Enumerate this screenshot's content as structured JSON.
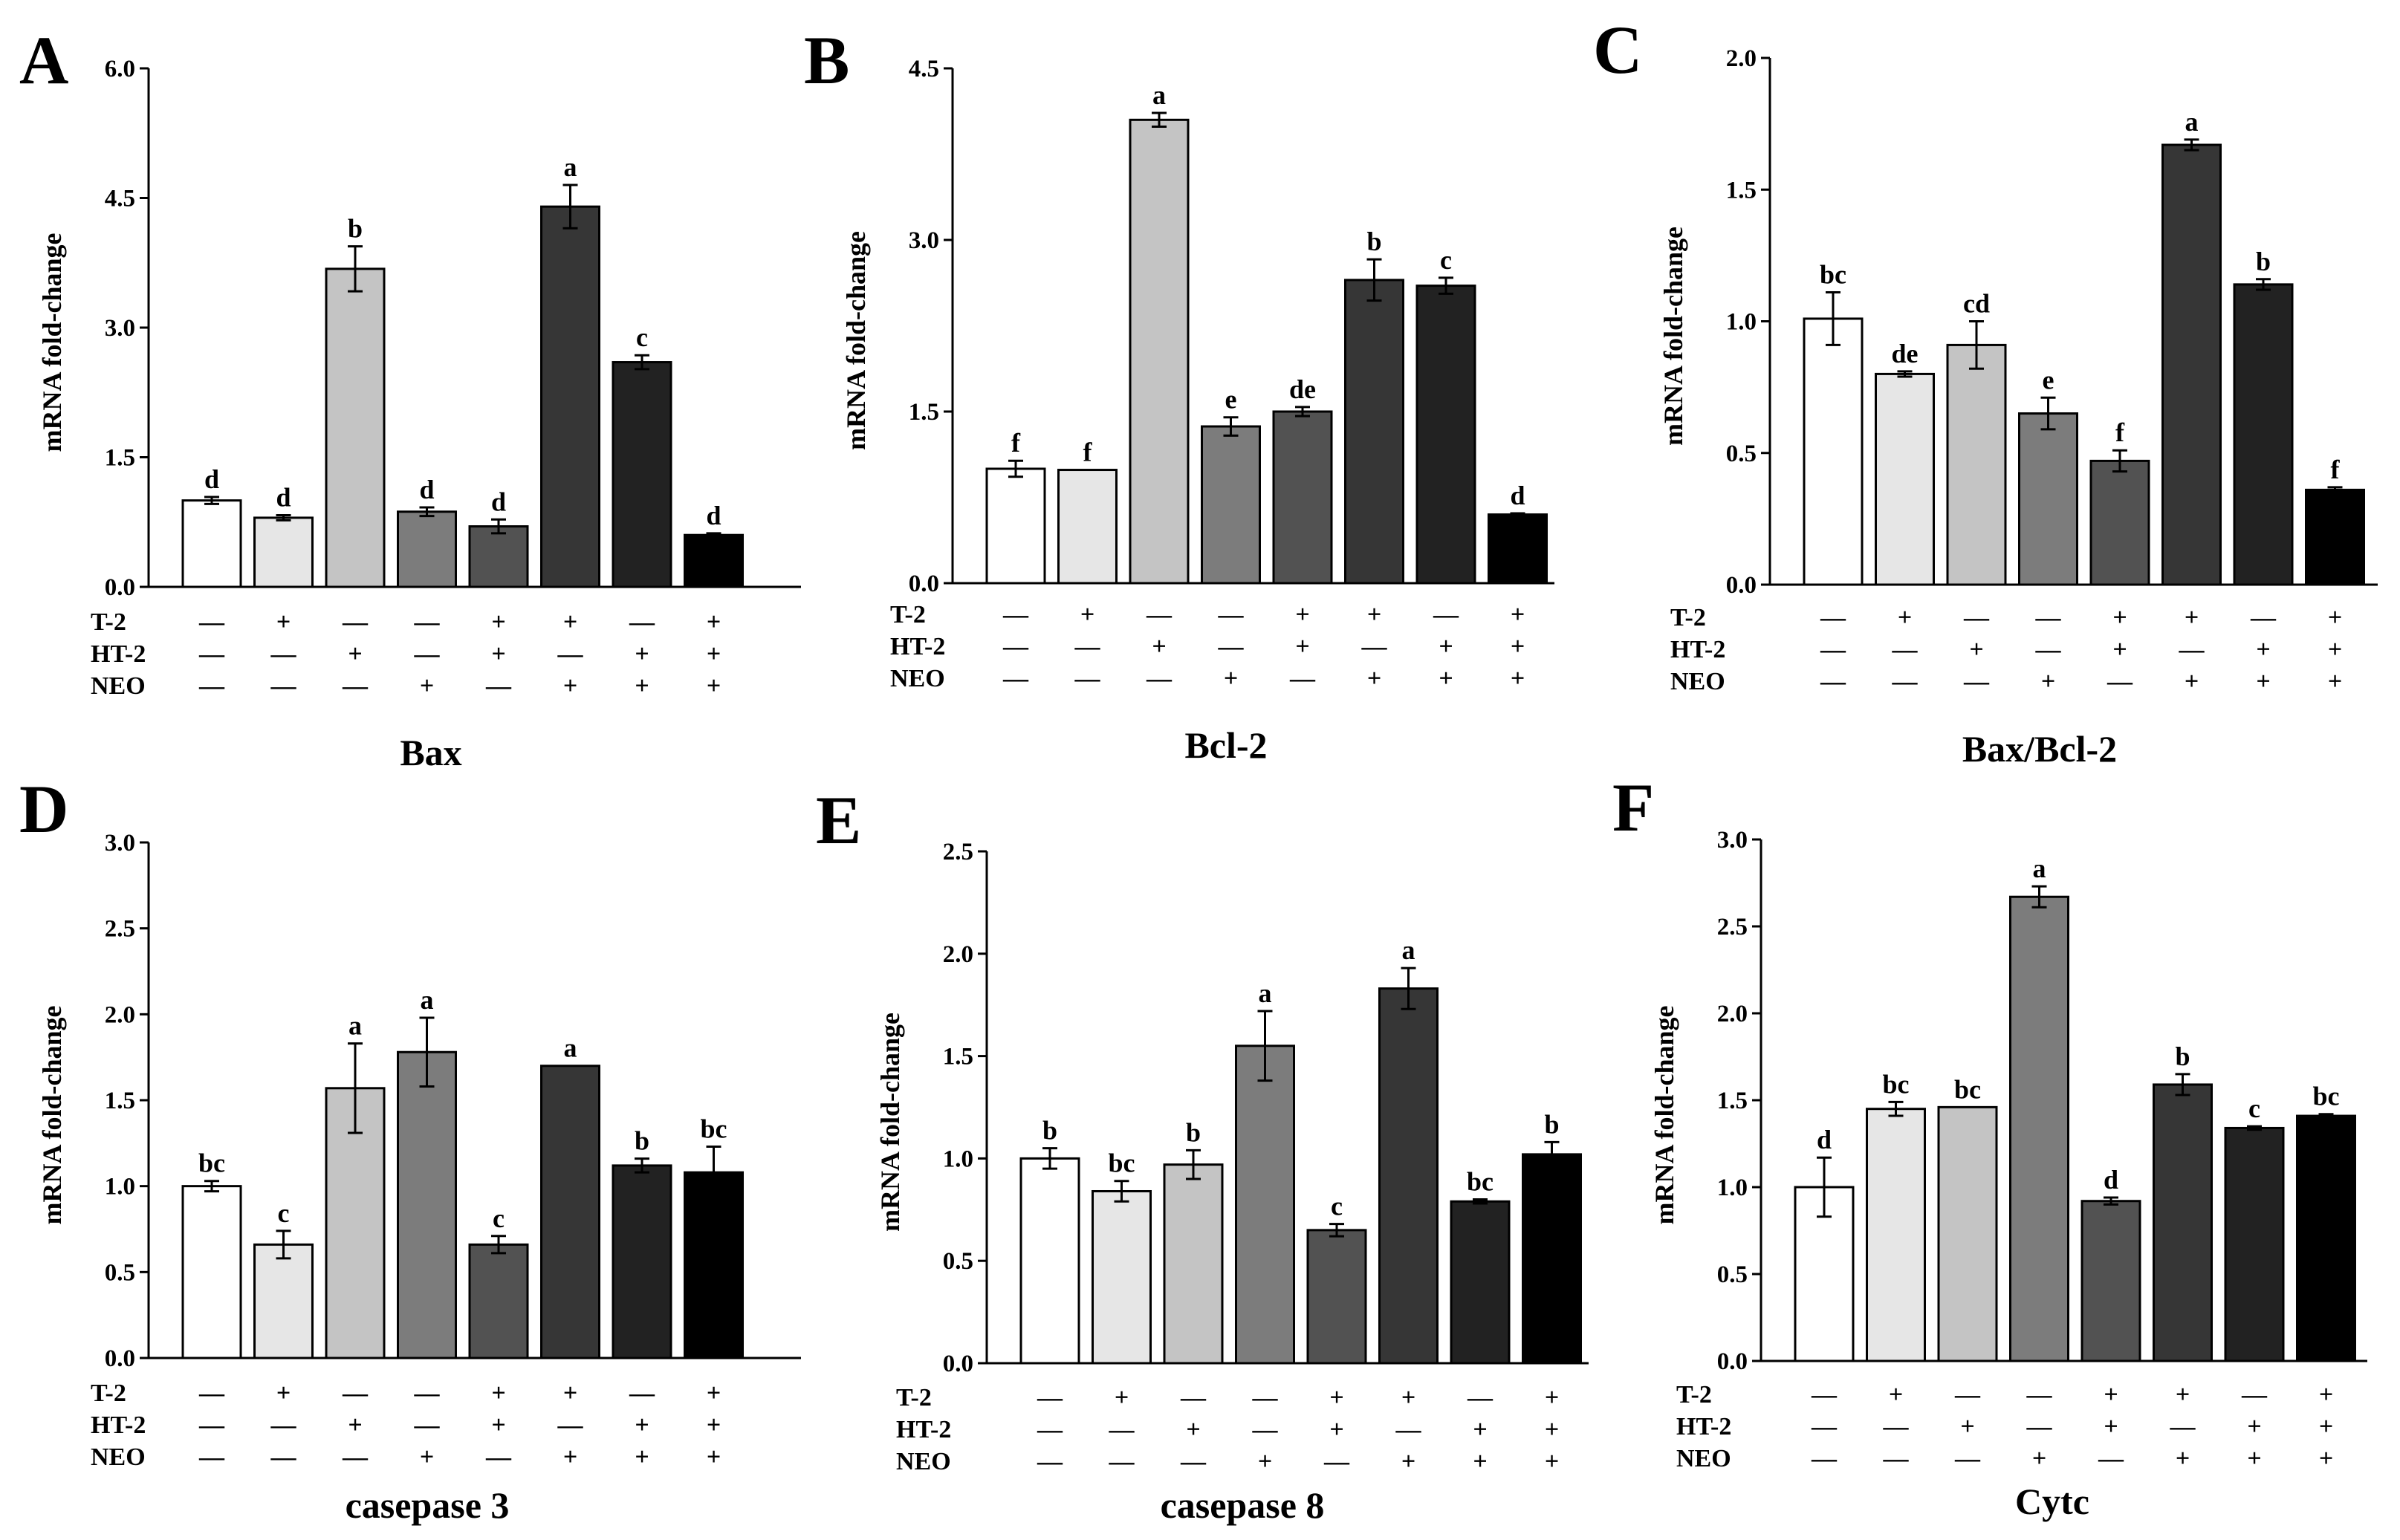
{
  "figure": {
    "rows": [
      "T-2",
      "HT-2",
      "NEO"
    ],
    "plus": "+",
    "minus": "—",
    "treatments": [
      {
        "T-2": "—",
        "HT-2": "—",
        "NEO": "—"
      },
      {
        "T-2": "+",
        "HT-2": "—",
        "NEO": "—"
      },
      {
        "T-2": "—",
        "HT-2": "+",
        "NEO": "—"
      },
      {
        "T-2": "—",
        "HT-2": "—",
        "NEO": "+"
      },
      {
        "T-2": "+",
        "HT-2": "+",
        "NEO": "—"
      },
      {
        "T-2": "+",
        "HT-2": "—",
        "NEO": "+"
      },
      {
        "T-2": "—",
        "HT-2": "+",
        "NEO": "+"
      },
      {
        "T-2": "+",
        "HT-2": "+",
        "NEO": "+"
      }
    ],
    "bar_colors": [
      "#ffffff",
      "#e6e6e6",
      "#c4c4c4",
      "#7c7c7c",
      "#525252",
      "#363636",
      "#222222",
      "#000000"
    ]
  },
  "chart_data": [
    {
      "type": "bar",
      "panel": "A",
      "title": "Bax",
      "ylabel": "mRNA fold-change",
      "ylim": [
        0,
        6.0
      ],
      "yticks": [
        "0.0",
        "1.5",
        "3.0",
        "4.5",
        "6.0"
      ],
      "values": [
        1.0,
        0.8,
        3.68,
        0.87,
        0.7,
        4.4,
        2.6,
        0.6
      ],
      "errors": [
        0.04,
        0.03,
        0.26,
        0.05,
        0.08,
        0.25,
        0.08,
        0.02
      ],
      "labels": [
        "d",
        "d",
        "b",
        "d",
        "d",
        "a",
        "c",
        "d"
      ]
    },
    {
      "type": "bar",
      "panel": "B",
      "title": "Bcl-2",
      "ylabel": "mRNA fold-change",
      "ylim": [
        0,
        4.5
      ],
      "yticks": [
        "0.0",
        "1.5",
        "3.0",
        "4.5"
      ],
      "values": [
        1.0,
        0.99,
        4.05,
        1.37,
        1.5,
        2.65,
        2.6,
        0.6
      ],
      "errors": [
        0.07,
        0.0,
        0.06,
        0.08,
        0.04,
        0.18,
        0.07,
        0.01
      ],
      "labels": [
        "f",
        "f",
        "a",
        "e",
        "de",
        "b",
        "c",
        "d"
      ]
    },
    {
      "type": "bar",
      "panel": "C",
      "title": "Bax/Bcl-2",
      "ylabel": "mRNA fold-change",
      "ylim": [
        0,
        2.0
      ],
      "yticks": [
        "0.0",
        "0.5",
        "1.0",
        "1.5",
        "2.0"
      ],
      "values": [
        1.01,
        0.8,
        0.91,
        0.65,
        0.47,
        1.67,
        1.14,
        0.36
      ],
      "errors": [
        0.1,
        0.01,
        0.09,
        0.06,
        0.04,
        0.02,
        0.02,
        0.01
      ],
      "labels": [
        "bc",
        "de",
        "cd",
        "e",
        "f",
        "a",
        "b",
        "f"
      ]
    },
    {
      "type": "bar",
      "panel": "D",
      "title": "casepase 3",
      "ylabel": "mRNA fold-change",
      "ylim": [
        0,
        3.0
      ],
      "yticks": [
        "0.0",
        "0.5",
        "1.0",
        "1.5",
        "2.0",
        "2.5",
        "3.0"
      ],
      "values": [
        1.0,
        0.66,
        1.57,
        1.78,
        0.66,
        1.7,
        1.12,
        1.08
      ],
      "errors": [
        0.03,
        0.08,
        0.26,
        0.2,
        0.05,
        0.0,
        0.04,
        0.15
      ],
      "labels": [
        "bc",
        "c",
        "a",
        "a",
        "c",
        "a",
        "b",
        "bc"
      ]
    },
    {
      "type": "bar",
      "panel": "E",
      "title": "casepase 8",
      "ylabel": "mRNA fold-change",
      "ylim": [
        0,
        2.5
      ],
      "yticks": [
        "0.0",
        "0.5",
        "1.0",
        "1.5",
        "2.0",
        "2.5"
      ],
      "values": [
        1.0,
        0.84,
        0.97,
        1.55,
        0.65,
        1.83,
        0.79,
        1.02
      ],
      "errors": [
        0.05,
        0.05,
        0.07,
        0.17,
        0.03,
        0.1,
        0.01,
        0.06
      ],
      "labels": [
        "b",
        "bc",
        "b",
        "a",
        "c",
        "a",
        "bc",
        "b"
      ]
    },
    {
      "type": "bar",
      "panel": "F",
      "title": "Cytc",
      "ylabel": "mRNA fold-change",
      "ylim": [
        0,
        3.0
      ],
      "yticks": [
        "0.0",
        "0.5",
        "1.0",
        "1.5",
        "2.0",
        "2.5",
        "3.0"
      ],
      "values": [
        1.0,
        1.45,
        1.46,
        2.67,
        0.92,
        1.59,
        1.34,
        1.41
      ],
      "errors": [
        0.17,
        0.04,
        0.0,
        0.06,
        0.02,
        0.06,
        0.01,
        0.01
      ],
      "labels": [
        "d",
        "bc",
        "bc",
        "a",
        "d",
        "b",
        "c",
        "bc"
      ]
    }
  ]
}
